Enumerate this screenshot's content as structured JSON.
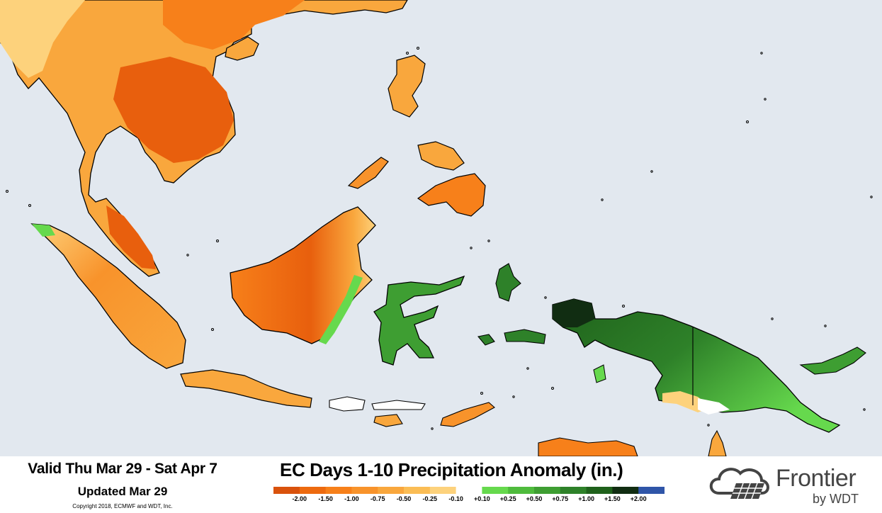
{
  "footer": {
    "valid": "Valid Thu Mar 29 - Sat Apr 7",
    "updated": "Updated Mar 29",
    "copyright": "Copyright 2018, ECMWF and WDT, Inc.",
    "title": "EC Days 1-10 Precipitation Anomaly (in.)"
  },
  "legend": {
    "labels": [
      "-2.00",
      "-1.50",
      "-1.00",
      "-0.75",
      "-0.50",
      "-0.25",
      "-0.10",
      "+0.10",
      "+0.25",
      "+0.50",
      "+0.75",
      "+1.00",
      "+1.50",
      "+2.00"
    ],
    "colors": [
      "#d9520c",
      "#ed6a0f",
      "#f7801a",
      "#f8932b",
      "#f9a73d",
      "#fbbd55",
      "#fdd27c",
      "#ffffff",
      "#66d94d",
      "#4fbb3d",
      "#3e9e32",
      "#2e8129",
      "#1f611b",
      "#112d12",
      "#2f55a8"
    ]
  },
  "logo": {
    "name": "Frontier",
    "sub": "by WDT"
  },
  "map": {
    "ocean_color": "#e2e8ef",
    "dry_colors": [
      "#fdd27c",
      "#f9a73d",
      "#f7801a",
      "#e85f0d"
    ],
    "wet_colors": [
      "#66d94d",
      "#3e9e32",
      "#1f611b"
    ]
  }
}
